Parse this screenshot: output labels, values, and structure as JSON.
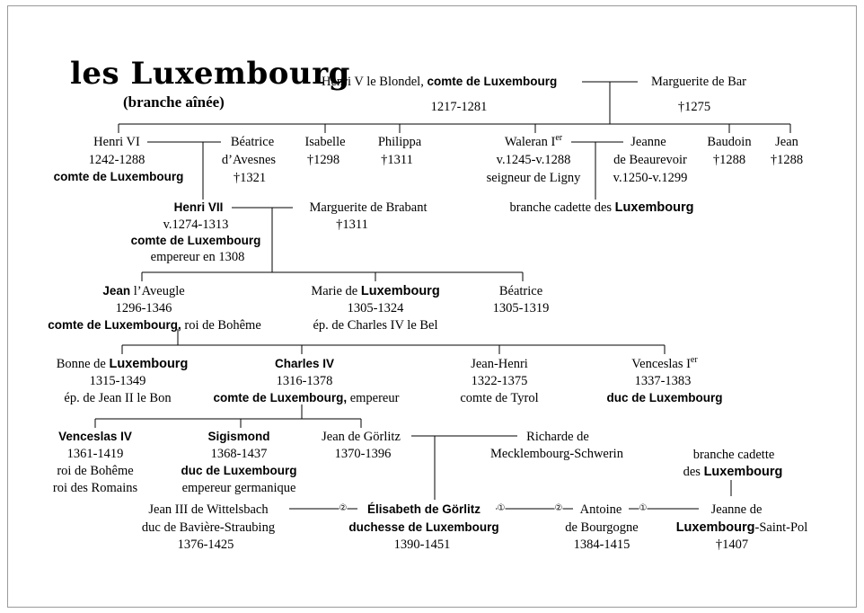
{
  "title": "les Luxembourg",
  "subtitle": "(branche aînée)",
  "people": {
    "henri5": {
      "name": "Henri V le Blondel, ",
      "title": "comte de Luxembourg",
      "dates": "1217-1281"
    },
    "marguerite_bar": {
      "name": "Marguerite de Bar",
      "dates": "†1275"
    },
    "henri6": {
      "name": "Henri VI",
      "dates": "1242-1288",
      "title": "comte de Luxembourg"
    },
    "beatrice_avesnes": {
      "name1": "Béatrice",
      "name2": "d’Avesnes",
      "dates": "†1321"
    },
    "isabelle": {
      "name": "Isabelle",
      "dates": "†1298"
    },
    "philippa": {
      "name": "Philippa",
      "dates": "†1311"
    },
    "waleran": {
      "name": "Waleran I",
      "sup": "er",
      "dates": "v.1245-v.1288",
      "note": "seigneur de Ligny"
    },
    "jeanne_beaurevoir": {
      "name1": "Jeanne",
      "name2": "de Beaurevoir",
      "dates": "v.1250-v.1299"
    },
    "baudoin": {
      "name": "Baudoin",
      "dates": "†1288"
    },
    "jean1288": {
      "name": "Jean",
      "dates": "†1288"
    },
    "branche_cadette1": {
      "text": "branche cadette des ",
      "bold": "Luxembourg"
    },
    "henri7": {
      "name": "Henri VII",
      "dates": "v.1274-1313",
      "title": "comte de Luxembourg",
      "note": "empereur en 1308"
    },
    "marguerite_brabant": {
      "name": "Marguerite de Brabant",
      "dates": "†1311"
    },
    "jean_aveugle": {
      "name_bold": "Jean",
      "name_rest": " l’Aveugle",
      "dates": "1296-1346",
      "title": "comte de Luxembourg,",
      "title_rest": " roi de Bohême"
    },
    "marie": {
      "name": "Marie de ",
      "name_bold": "Luxembourg",
      "dates": "1305-1324",
      "note": "ép. de Charles IV le Bel"
    },
    "beatrice1305": {
      "name": "Béatrice",
      "dates": "1305-1319"
    },
    "bonne": {
      "name": "Bonne de ",
      "name_bold": "Luxembourg",
      "dates": "1315-1349",
      "note": "ép. de Jean II le Bon"
    },
    "charles4": {
      "name": "Charles IV",
      "dates": "1316-1378",
      "title": "comte de Luxembourg,",
      "title_rest": " empereur"
    },
    "jean_henri": {
      "name": "Jean-Henri",
      "dates": "1322-1375",
      "note": "comte de Tyrol"
    },
    "venceslas1": {
      "name": "Venceslas I",
      "sup": "er",
      "dates": "1337-1383",
      "title": "duc de Luxembourg"
    },
    "venceslas4": {
      "name": "Venceslas IV",
      "dates": "1361-1419",
      "note1": "roi de Bohême",
      "note2": "roi des Romains"
    },
    "sigismond": {
      "name": "Sigismond",
      "dates": "1368-1437",
      "title": "duc de Luxembourg",
      "note": "empereur germanique"
    },
    "jean_gorlitz": {
      "name": "Jean de Görlitz",
      "dates": "1370-1396"
    },
    "richarde": {
      "name1": "Richarde de",
      "name2": "Mecklembourg-Schwerin"
    },
    "branche_cadette2": {
      "text1": "branche cadette",
      "text2": "des ",
      "bold": "Luxembourg"
    },
    "jean3_wittelsbach": {
      "name1": "Jean III de Wittelsbach",
      "name2": "duc de Bavière-Straubing",
      "dates": "1376-1425"
    },
    "elisabeth": {
      "name": "Élisabeth de Görlitz",
      "title": "duchesse de Luxembourg",
      "dates": "1390-1451"
    },
    "antoine": {
      "name1": "Antoine",
      "name2": "de Bourgogne",
      "dates": "1384-1415"
    },
    "jeanne_lsp": {
      "name1": "Jeanne de",
      "name_bold": "Luxembourg",
      "name_rest": "-Saint-Pol",
      "dates": "†1407"
    }
  },
  "marriage_marks": {
    "second": "②",
    "first": "①"
  }
}
